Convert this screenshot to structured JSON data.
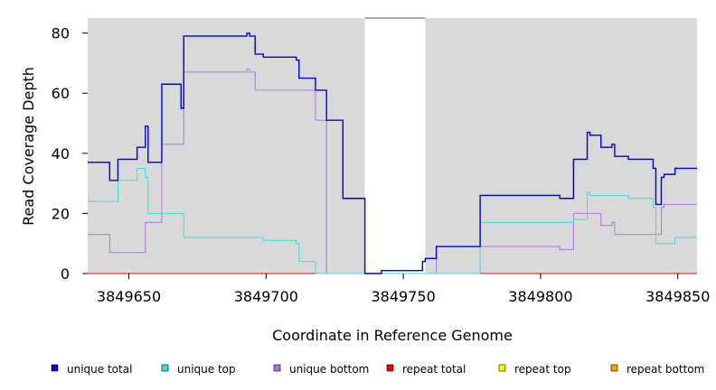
{
  "chart_data": {
    "type": "line",
    "title": "",
    "xlabel": "Coordinate in Reference Genome",
    "ylabel": "Read Coverage Depth",
    "xlim": [
      3849635,
      3849857
    ],
    "ylim": [
      0,
      85
    ],
    "x_ticks": [
      3849650,
      3849700,
      3849750,
      3849800,
      3849850
    ],
    "y_ticks": [
      0,
      20,
      40,
      60,
      80
    ],
    "grid": false,
    "panel_background": "#d9d9d9",
    "gap_region": [
      3849736,
      3849758
    ],
    "legend_position": "bottom",
    "series": [
      {
        "name": "unique total",
        "color": "#0000dd",
        "points": [
          [
            3849635,
            37
          ],
          [
            3849643,
            37
          ],
          [
            3849643,
            31
          ],
          [
            3849646,
            31
          ],
          [
            3849646,
            38
          ],
          [
            3849653,
            38
          ],
          [
            3849653,
            42
          ],
          [
            3849656,
            42
          ],
          [
            3849656,
            49
          ],
          [
            3849657,
            49
          ],
          [
            3849657,
            37
          ],
          [
            3849662,
            37
          ],
          [
            3849662,
            63
          ],
          [
            3849669,
            63
          ],
          [
            3849669,
            55
          ],
          [
            3849670,
            55
          ],
          [
            3849670,
            79
          ],
          [
            3849693,
            79
          ],
          [
            3849693,
            80
          ],
          [
            3849694,
            80
          ],
          [
            3849694,
            79
          ],
          [
            3849696,
            79
          ],
          [
            3849696,
            73
          ],
          [
            3849699,
            73
          ],
          [
            3849699,
            72
          ],
          [
            3849711,
            72
          ],
          [
            3849711,
            71
          ],
          [
            3849712,
            71
          ],
          [
            3849712,
            65
          ],
          [
            3849718,
            65
          ],
          [
            3849718,
            61
          ],
          [
            3849722,
            61
          ],
          [
            3849722,
            51
          ],
          [
            3849728,
            51
          ],
          [
            3849728,
            25
          ],
          [
            3849736,
            25
          ],
          [
            3849736,
            0
          ],
          [
            3849742,
            0
          ],
          [
            3849742,
            1
          ],
          [
            3849757,
            1
          ],
          [
            3849757,
            4
          ],
          [
            3849758,
            4
          ],
          [
            3849758,
            5
          ],
          [
            3849762,
            5
          ],
          [
            3849762,
            9
          ],
          [
            3849778,
            9
          ],
          [
            3849778,
            26
          ],
          [
            3849807,
            26
          ],
          [
            3849807,
            25
          ],
          [
            3849812,
            25
          ],
          [
            3849812,
            38
          ],
          [
            3849817,
            38
          ],
          [
            3849817,
            47
          ],
          [
            3849818,
            47
          ],
          [
            3849818,
            46
          ],
          [
            3849822,
            46
          ],
          [
            3849822,
            42
          ],
          [
            3849826,
            42
          ],
          [
            3849826,
            43
          ],
          [
            3849827,
            43
          ],
          [
            3849827,
            39
          ],
          [
            3849832,
            39
          ],
          [
            3849832,
            38
          ],
          [
            3849841,
            38
          ],
          [
            3849841,
            35
          ],
          [
            3849842,
            35
          ],
          [
            3849842,
            23
          ],
          [
            3849844,
            23
          ],
          [
            3849844,
            32
          ],
          [
            3849845,
            32
          ],
          [
            3849845,
            33
          ],
          [
            3849849,
            33
          ],
          [
            3849849,
            35
          ],
          [
            3849857,
            35
          ]
        ]
      },
      {
        "name": "unique top",
        "color": "#33e0e0",
        "points": [
          [
            3849635,
            24
          ],
          [
            3849646,
            24
          ],
          [
            3849646,
            31
          ],
          [
            3849653,
            31
          ],
          [
            3849653,
            35
          ],
          [
            3849656,
            35
          ],
          [
            3849656,
            32
          ],
          [
            3849657,
            32
          ],
          [
            3849657,
            20
          ],
          [
            3849670,
            20
          ],
          [
            3849670,
            12
          ],
          [
            3849699,
            12
          ],
          [
            3849699,
            11
          ],
          [
            3849711,
            11
          ],
          [
            3849711,
            10
          ],
          [
            3849712,
            10
          ],
          [
            3849712,
            4
          ],
          [
            3849718,
            4
          ],
          [
            3849718,
            0
          ],
          [
            3849778,
            0
          ],
          [
            3849778,
            17
          ],
          [
            3849812,
            17
          ],
          [
            3849812,
            18
          ],
          [
            3849817,
            18
          ],
          [
            3849817,
            27
          ],
          [
            3849818,
            27
          ],
          [
            3849818,
            26
          ],
          [
            3849832,
            26
          ],
          [
            3849832,
            25
          ],
          [
            3849841,
            25
          ],
          [
            3849841,
            22
          ],
          [
            3849842,
            22
          ],
          [
            3849842,
            10
          ],
          [
            3849849,
            10
          ],
          [
            3849849,
            12
          ],
          [
            3849857,
            12
          ]
        ]
      },
      {
        "name": "unique bottom",
        "color": "#b070e0",
        "points": [
          [
            3849635,
            13
          ],
          [
            3849643,
            13
          ],
          [
            3849643,
            7
          ],
          [
            3849656,
            7
          ],
          [
            3849656,
            17
          ],
          [
            3849662,
            17
          ],
          [
            3849662,
            43
          ],
          [
            3849670,
            43
          ],
          [
            3849670,
            67
          ],
          [
            3849693,
            67
          ],
          [
            3849693,
            68
          ],
          [
            3849694,
            68
          ],
          [
            3849694,
            67
          ],
          [
            3849696,
            67
          ],
          [
            3849696,
            61
          ],
          [
            3849718,
            61
          ],
          [
            3849718,
            51
          ],
          [
            3849722,
            51
          ],
          [
            3849722,
            0
          ],
          [
            3849762,
            0
          ],
          [
            3849762,
            9
          ],
          [
            3849807,
            9
          ],
          [
            3849807,
            8
          ],
          [
            3849812,
            8
          ],
          [
            3849812,
            20
          ],
          [
            3849822,
            20
          ],
          [
            3849822,
            16
          ],
          [
            3849826,
            16
          ],
          [
            3849826,
            17
          ],
          [
            3849827,
            17
          ],
          [
            3849827,
            13
          ],
          [
            3849844,
            13
          ],
          [
            3849844,
            22
          ],
          [
            3849845,
            22
          ],
          [
            3849845,
            23
          ],
          [
            3849857,
            23
          ]
        ]
      },
      {
        "name": "repeat total",
        "color": "#ee0000",
        "points": [
          [
            3849635,
            0
          ],
          [
            3849857,
            0
          ]
        ]
      },
      {
        "name": "repeat top",
        "color": "#ffff00",
        "points": [
          [
            3849635,
            0
          ],
          [
            3849857,
            0
          ]
        ]
      },
      {
        "name": "repeat bottom",
        "color": "#f0a000",
        "points": [
          [
            3849635,
            0
          ],
          [
            3849857,
            0
          ]
        ]
      }
    ]
  }
}
